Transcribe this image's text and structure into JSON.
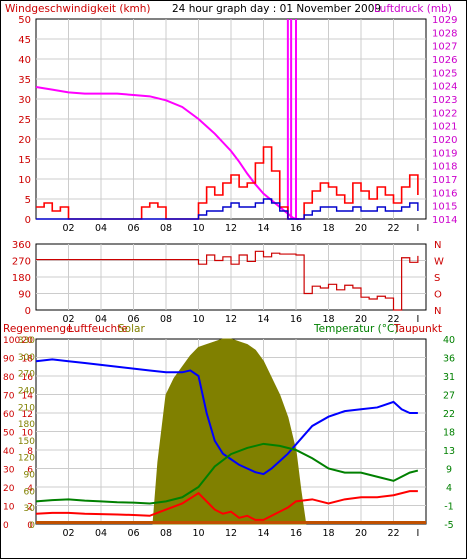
{
  "chart_data": [
    {
      "type": "line",
      "title": "24 hour graph day : 01 November 2009",
      "left_axis_label": "Windgeschwindigkeit (kmh)",
      "right_axis_label": "Luftdruck (mb)",
      "ylim_left": [
        0,
        50
      ],
      "ylim_right": [
        1014,
        1029
      ],
      "yticks_left": [
        "0",
        "5",
        "10",
        "15",
        "20",
        "25",
        "30",
        "35",
        "40",
        "45",
        "50"
      ],
      "yticks_right": [
        "1014",
        "1015",
        "1016",
        "1017",
        "1018",
        "1019",
        "1020",
        "1021",
        "1022",
        "1023",
        "1024",
        "1025",
        "1026",
        "1027",
        "1028",
        "1029"
      ],
      "xticks": [
        "02",
        "04",
        "06",
        "08",
        "10",
        "12",
        "14",
        "16",
        "18",
        "20",
        "22",
        "I"
      ],
      "grid": true,
      "series": [
        {
          "name": "Luftdruck",
          "color": "#ff00ff",
          "axis": "right",
          "x": [
            0,
            1,
            2,
            3,
            4,
            5,
            6,
            7,
            8,
            9,
            10,
            11,
            12,
            12.5,
            13,
            13.5,
            14,
            14.5,
            15,
            15.5,
            15.8,
            16,
            16.2
          ],
          "y": [
            1023.9,
            1023.7,
            1023.5,
            1023.4,
            1023.4,
            1023.4,
            1023.3,
            1023.2,
            1022.9,
            1022.4,
            1021.5,
            1020.4,
            1019.1,
            1018.3,
            1017.4,
            1016.6,
            1015.9,
            1015.4,
            1014.9,
            1014.4,
            1014.1,
            1014.0,
            1014.0
          ]
        },
        {
          "name": "Wind max",
          "color": "#ff0000",
          "axis": "left",
          "x": [
            0,
            0.5,
            1,
            1.5,
            2,
            2.5,
            3,
            3.5,
            4,
            4.5,
            5,
            5.5,
            6,
            6.5,
            7,
            7.5,
            8,
            8.5,
            9,
            9.5,
            10,
            10.5,
            11,
            11.5,
            12,
            12.5,
            13,
            13.5,
            14,
            14.5,
            15,
            15.5,
            16,
            16.5,
            17,
            17.5,
            18,
            18.5,
            19,
            19.5,
            20,
            20.5,
            21,
            21.5,
            22,
            22.5,
            23,
            23.5
          ],
          "y": [
            3,
            4,
            2,
            3,
            0,
            0,
            0,
            0,
            0,
            0,
            0,
            0,
            0,
            3,
            4,
            3,
            0,
            0,
            0,
            0,
            4,
            8,
            6,
            9,
            11,
            8,
            9,
            14,
            18,
            12,
            3,
            0,
            0,
            4,
            7,
            9,
            8,
            6,
            4,
            9,
            7,
            5,
            8,
            6,
            4,
            8,
            11,
            6
          ]
        },
        {
          "name": "Wind mittel",
          "color": "#0000cc",
          "axis": "left",
          "x": [
            0,
            1,
            2,
            3,
            4,
            5,
            6,
            7,
            8,
            9,
            10,
            10.5,
            11,
            11.5,
            12,
            12.5,
            13,
            13.5,
            14,
            14.5,
            15,
            15.5,
            16,
            16.5,
            17,
            17.5,
            18,
            18.5,
            19,
            19.5,
            20,
            20.5,
            21,
            21.5,
            22,
            22.5,
            23,
            23.5
          ],
          "y": [
            0,
            0,
            0,
            0,
            0,
            0,
            0,
            0,
            0,
            0,
            1,
            2,
            2,
            3,
            4,
            3,
            3,
            4,
            5,
            4,
            2,
            0,
            0,
            1,
            2,
            3,
            3,
            2,
            2,
            3,
            2,
            2,
            3,
            2,
            2,
            3,
            4,
            2
          ]
        }
      ]
    },
    {
      "type": "line",
      "yticks_left": [
        "360",
        "270",
        "180",
        "90",
        "0"
      ],
      "yticks_right": [
        "N",
        "W",
        "S",
        "O",
        "N"
      ],
      "ylim": [
        0,
        360
      ],
      "xticks": [
        "02",
        "04",
        "06",
        "08",
        "10",
        "12",
        "14",
        "16",
        "18",
        "20",
        "22",
        "I"
      ],
      "series": [
        {
          "name": "Windrichtung",
          "color": "#cc0000",
          "x": [
            0,
            1,
            2,
            3,
            4,
            5,
            6,
            7,
            8,
            9,
            9.5,
            10,
            10.5,
            11,
            11.5,
            12,
            12.5,
            13,
            13.5,
            14,
            14.5,
            15,
            15.5,
            16,
            16.5,
            17,
            17.5,
            18,
            18.5,
            19,
            19.5,
            20,
            20.5,
            21,
            21.5,
            22,
            22.5,
            23,
            23.5
          ],
          "y": [
            275,
            275,
            275,
            275,
            275,
            275,
            275,
            275,
            275,
            275,
            275,
            250,
            300,
            270,
            290,
            250,
            300,
            265,
            320,
            290,
            310,
            305,
            305,
            300,
            90,
            130,
            120,
            140,
            110,
            135,
            120,
            70,
            60,
            75,
            65,
            0,
            285,
            260,
            295
          ]
        }
      ]
    },
    {
      "type": "line",
      "left_labels": [
        "Regenmenge",
        "Luftfeuchte",
        "Solar"
      ],
      "right_labels": [
        "Temperatur (°C)",
        "Taupunkt"
      ],
      "yticks_rain": [
        "0",
        "10",
        "20",
        "30",
        "40",
        "50",
        "60",
        "70",
        "80",
        "90",
        "100"
      ],
      "yticks_hum": [
        "0",
        "2",
        "4",
        "6",
        "8",
        "10",
        "12",
        "14",
        "16",
        "18",
        "20"
      ],
      "yticks_solar": [
        "0",
        "30",
        "60",
        "90",
        "120",
        "150",
        "180",
        "210",
        "240",
        "270",
        "300",
        "330"
      ],
      "yticks_temp": [
        "-5",
        "-1",
        "4",
        "9",
        "13",
        "18",
        "22",
        "27",
        "31",
        "36",
        "40"
      ],
      "ylim_hum": [
        0,
        100
      ],
      "ylim_temp": [
        -5,
        40
      ],
      "ylim_solar": [
        0,
        330
      ],
      "xticks": [
        "02",
        "04",
        "06",
        "08",
        "10",
        "12",
        "14",
        "16",
        "18",
        "20",
        "22",
        "I"
      ],
      "series": [
        {
          "name": "Solar",
          "color": "#808000",
          "x": [
            7.2,
            7.5,
            8,
            8.5,
            9,
            9.5,
            10,
            10.5,
            11,
            11.5,
            12,
            12.5,
            13,
            13.5,
            14,
            14.5,
            15,
            15.5,
            16,
            16.3,
            16.6
          ],
          "y": [
            0,
            110,
            230,
            260,
            280,
            300,
            315,
            320,
            325,
            330,
            330,
            325,
            320,
            310,
            290,
            260,
            230,
            190,
            130,
            60,
            0
          ]
        },
        {
          "name": "Luftfeuchte",
          "color": "#0000ff",
          "x": [
            0,
            1,
            2,
            3,
            4,
            5,
            6,
            7,
            8,
            9,
            9.5,
            10,
            10.5,
            11,
            11.5,
            12,
            12.5,
            13,
            13.5,
            14,
            14.5,
            15,
            15.5,
            16,
            16.5,
            17,
            18,
            19,
            20,
            21,
            22,
            22.5,
            23,
            23.5
          ],
          "y": [
            88,
            89,
            88,
            87,
            86,
            85,
            84,
            83,
            82,
            82,
            83,
            80,
            60,
            45,
            38,
            35,
            32,
            30,
            28,
            27,
            30,
            34,
            38,
            43,
            48,
            53,
            58,
            61,
            62,
            63,
            66,
            62,
            60,
            60
          ]
        },
        {
          "name": "Temperatur",
          "color": "#008000",
          "x": [
            0,
            1,
            2,
            3,
            4,
            5,
            6,
            7,
            8,
            9,
            10,
            11,
            12,
            13,
            14,
            15,
            16,
            17,
            18,
            19,
            20,
            21,
            22,
            23,
            23.5
          ],
          "y": [
            0.5,
            0.8,
            1.0,
            0.7,
            0.5,
            0.3,
            0.2,
            0.0,
            0.5,
            1.5,
            4.0,
            9.0,
            12.0,
            13.5,
            14.5,
            14.0,
            13.0,
            11.0,
            8.5,
            7.5,
            7.5,
            6.5,
            5.5,
            7.5,
            8.0
          ]
        },
        {
          "name": "Taupunkt",
          "color": "#ff0000",
          "x": [
            0,
            1,
            2,
            3,
            4,
            5,
            6,
            7,
            8,
            9,
            10,
            10.5,
            11,
            11.5,
            12,
            12.5,
            13,
            13.5,
            14,
            14.5,
            15,
            15.5,
            16,
            17,
            18,
            19,
            20,
            21,
            22,
            23,
            23.5
          ],
          "y": [
            -2.5,
            -2.3,
            -2.3,
            -2.5,
            -2.6,
            -2.7,
            -2.8,
            -3.0,
            -1.5,
            0.0,
            2.5,
            0.5,
            -1.5,
            -2.5,
            -2.0,
            -3.5,
            -3.0,
            -4.0,
            -4.0,
            -3.0,
            -2.0,
            -1.0,
            0.5,
            1.0,
            0.0,
            1.0,
            1.5,
            1.5,
            2.0,
            3.0,
            3.0
          ]
        },
        {
          "name": "Regenmenge",
          "color": "#cc0000",
          "x": [
            0,
            24
          ],
          "y": [
            0,
            0
          ]
        }
      ]
    }
  ],
  "panel1": {
    "left_title": "Windgeschwindigkeit (kmh)",
    "center_title": "24 hour graph day : 01 November 2009",
    "right_title": "Luftdruck (mb)"
  },
  "panel3": {
    "label_rain": "Regenmenge",
    "label_hum": "Luftfeuchte",
    "label_solar": "Solar",
    "label_temp": "Temperatur (°C)",
    "label_dew": "Taupunkt"
  },
  "colors": {
    "grid": "#cccccc",
    "pressure": "#ff00ff",
    "wind": "#ff0000",
    "wind_avg": "#0000cc",
    "direction": "#cc0000",
    "solar": "#808000",
    "humidity": "#0000ff",
    "temperature": "#008000",
    "dewpoint": "#ff0000",
    "left_axis_text": "#cc0000",
    "right_axis_text": "#cc00cc",
    "temp_axis_text": "#008000"
  }
}
